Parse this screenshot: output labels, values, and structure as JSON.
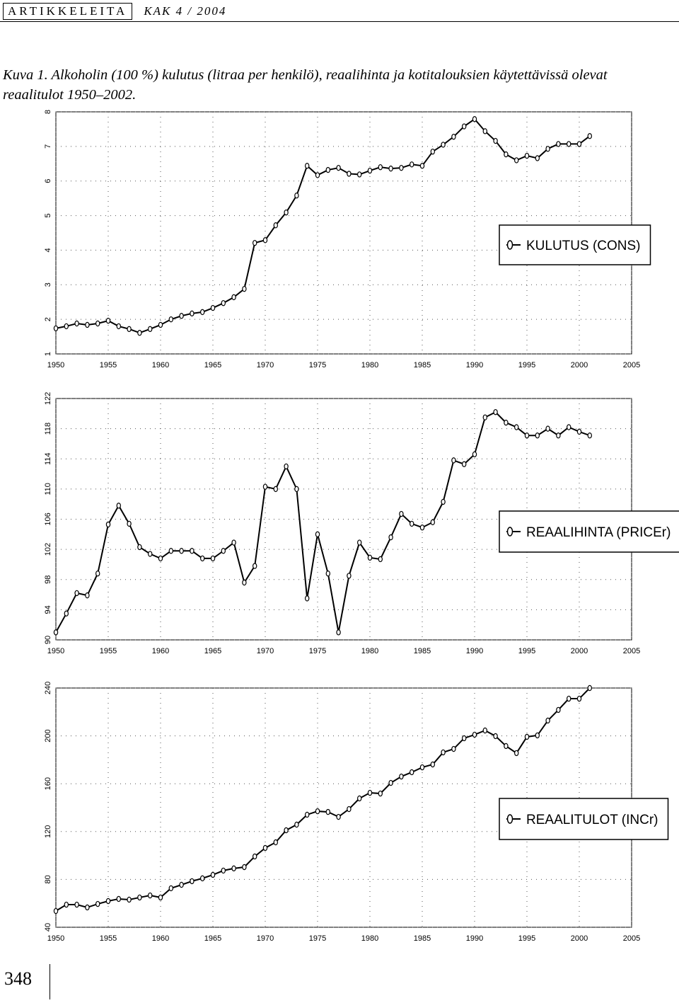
{
  "header": {
    "section": "ARTIKKELEITA",
    "issue": "KAK 4 / 2004"
  },
  "caption": "Kuva 1. Alkoholin (100 %) kulutus (litraa per henkilö), reaalihinta ja kotitalouksien käytettävissä olevat reaalitulot 1950–2002.",
  "page_number": "348",
  "chart_data": [
    {
      "type": "line",
      "x": [
        1950,
        1951,
        1952,
        1953,
        1954,
        1955,
        1956,
        1957,
        1958,
        1959,
        1960,
        1961,
        1962,
        1963,
        1964,
        1965,
        1966,
        1967,
        1968,
        1969,
        1970,
        1971,
        1972,
        1973,
        1974,
        1975,
        1976,
        1977,
        1978,
        1979,
        1980,
        1981,
        1982,
        1983,
        1984,
        1985,
        1986,
        1987,
        1988,
        1989,
        1990,
        1991,
        1992,
        1993,
        1994,
        1995,
        1996,
        1997,
        1998,
        1999,
        2000,
        2001
      ],
      "series": [
        {
          "name": "KULUTUS (CONS)",
          "color": "#000000",
          "values": [
            1.74,
            1.8,
            1.88,
            1.84,
            1.88,
            1.96,
            1.8,
            1.72,
            1.61,
            1.72,
            1.84,
            2.0,
            2.1,
            2.17,
            2.21,
            2.33,
            2.47,
            2.64,
            2.88,
            4.21,
            4.29,
            4.72,
            5.09,
            5.58,
            6.44,
            6.17,
            6.32,
            6.38,
            6.21,
            6.19,
            6.3,
            6.4,
            6.36,
            6.38,
            6.48,
            6.44,
            6.85,
            7.05,
            7.28,
            7.58,
            7.79,
            7.44,
            7.16,
            6.77,
            6.6,
            6.73,
            6.66,
            6.93,
            7.07,
            7.07,
            7.07,
            7.3
          ]
        }
      ],
      "xlim": [
        1950,
        2005
      ],
      "xticks": [
        1950,
        1955,
        1960,
        1965,
        1970,
        1975,
        1980,
        1985,
        1990,
        1995,
        2000,
        2005
      ],
      "ylim": [
        1,
        8
      ],
      "yticks": [
        1,
        2,
        3,
        4,
        5,
        6,
        7,
        8
      ],
      "grid": true,
      "legend": "right"
    },
    {
      "type": "line",
      "x": [
        1950,
        1951,
        1952,
        1953,
        1954,
        1955,
        1956,
        1957,
        1958,
        1959,
        1960,
        1961,
        1962,
        1963,
        1964,
        1965,
        1966,
        1967,
        1968,
        1969,
        1970,
        1971,
        1972,
        1973,
        1974,
        1975,
        1976,
        1977,
        1978,
        1979,
        1980,
        1981,
        1982,
        1983,
        1984,
        1985,
        1986,
        1987,
        1988,
        1989,
        1990,
        1991,
        1992,
        1993,
        1994,
        1995,
        1996,
        1997,
        1998,
        1999,
        2000,
        2001
      ],
      "series": [
        {
          "name": "REAALIHINTA (PRICEr)",
          "color": "#000000",
          "values": [
            91.0,
            93.5,
            96.2,
            95.9,
            98.8,
            105.3,
            107.8,
            105.4,
            102.3,
            101.4,
            100.8,
            101.8,
            101.8,
            101.8,
            100.8,
            100.8,
            101.8,
            102.9,
            97.6,
            99.8,
            110.3,
            110.0,
            113.0,
            110.0,
            95.5,
            104.0,
            98.8,
            91.0,
            98.5,
            102.9,
            100.9,
            100.7,
            103.6,
            106.7,
            105.4,
            104.9,
            105.6,
            108.3,
            113.8,
            113.3,
            114.6,
            119.5,
            120.2,
            118.8,
            118.2,
            117.1,
            117.1,
            118.0,
            117.1,
            118.2,
            117.6,
            117.1
          ]
        }
      ],
      "xlim": [
        1950,
        2005
      ],
      "xticks": [
        1950,
        1955,
        1960,
        1965,
        1970,
        1975,
        1980,
        1985,
        1990,
        1995,
        2000,
        2005
      ],
      "ylim": [
        90,
        122
      ],
      "yticks": [
        90,
        94,
        98,
        102,
        106,
        110,
        114,
        118,
        122
      ],
      "grid": true,
      "legend": "right"
    },
    {
      "type": "line",
      "x": [
        1950,
        1951,
        1952,
        1953,
        1954,
        1955,
        1956,
        1957,
        1958,
        1959,
        1960,
        1961,
        1962,
        1963,
        1964,
        1965,
        1966,
        1967,
        1968,
        1969,
        1970,
        1971,
        1972,
        1973,
        1974,
        1975,
        1976,
        1977,
        1978,
        1979,
        1980,
        1981,
        1982,
        1983,
        1984,
        1985,
        1986,
        1987,
        1988,
        1989,
        1990,
        1991,
        1992,
        1993,
        1994,
        1995,
        1996,
        1997,
        1998,
        1999,
        2000,
        2001
      ],
      "series": [
        {
          "name": "REAALITULOT (INCr)",
          "color": "#000000",
          "values": [
            53.6,
            58.9,
            58.9,
            56.6,
            59.5,
            61.9,
            63.7,
            63.1,
            64.9,
            66.6,
            64.9,
            72.6,
            75.5,
            78.5,
            80.9,
            83.8,
            87.4,
            89.2,
            90.3,
            99.2,
            106.3,
            111.0,
            121.1,
            125.8,
            134.1,
            137.0,
            136.4,
            132.3,
            138.8,
            147.7,
            152.4,
            151.8,
            160.7,
            166.0,
            169.6,
            173.7,
            176.1,
            186.2,
            189.1,
            198.0,
            201.0,
            204.5,
            199.8,
            191.5,
            185.6,
            199.2,
            200.4,
            212.8,
            221.7,
            231.1,
            231.1,
            240.0
          ]
        }
      ],
      "xlim": [
        1950,
        2005
      ],
      "xticks": [
        1950,
        1955,
        1960,
        1965,
        1970,
        1975,
        1980,
        1985,
        1990,
        1995,
        2000,
        2005
      ],
      "ylim": [
        40,
        240
      ],
      "yticks": [
        40,
        80,
        120,
        160,
        200,
        240
      ],
      "grid": true,
      "legend": "right"
    }
  ]
}
